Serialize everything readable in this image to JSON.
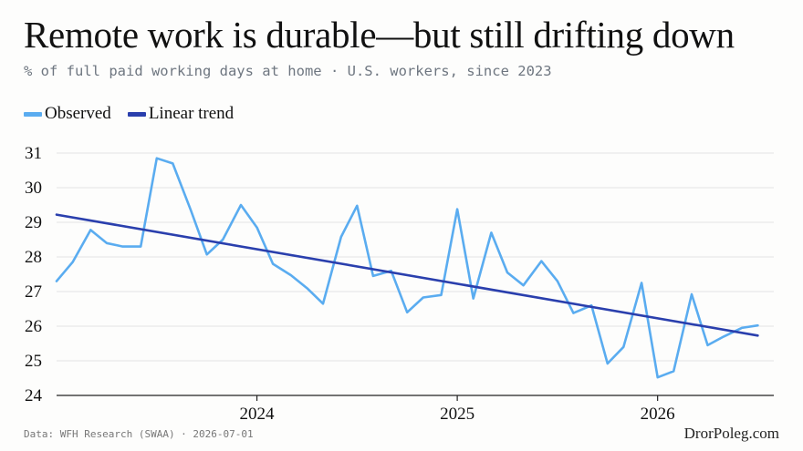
{
  "header": {
    "title": "Remote work is durable—but still drifting down",
    "subtitle": "% of full paid working days at home · U.S. workers, since 2023"
  },
  "legend": {
    "observed_label": "Observed",
    "trend_label": "Linear trend"
  },
  "colors": {
    "observed": "#5aacf0",
    "trend": "#2a3fad",
    "grid": "#e4e4e4",
    "axis": "#222222"
  },
  "chart_data": {
    "type": "line",
    "title": "Remote work is durable—but still drifting down",
    "subtitle": "% of full paid working days at home · U.S. workers, since 2023",
    "xlabel": "",
    "ylabel": "",
    "ylim": [
      24,
      31
    ],
    "y_ticks": [
      24,
      25,
      26,
      27,
      28,
      29,
      30,
      31
    ],
    "x_ticks": [
      "2024",
      "2025",
      "2026"
    ],
    "x_tick_positions": [
      2024.0,
      2025.0,
      2026.0
    ],
    "xlim": [
      2023.0,
      2026.58
    ],
    "grid": true,
    "legend_position": "top-left",
    "series": [
      {
        "name": "Observed",
        "style": "line",
        "x": [
          2023.0,
          2023.08,
          2023.17,
          2023.25,
          2023.33,
          2023.42,
          2023.5,
          2023.58,
          2023.67,
          2023.75,
          2023.83,
          2023.92,
          2024.0,
          2024.08,
          2024.17,
          2024.25,
          2024.33,
          2024.42,
          2024.5,
          2024.58,
          2024.67,
          2024.75,
          2024.83,
          2024.92,
          2025.0,
          2025.08,
          2025.17,
          2025.25,
          2025.33,
          2025.42,
          2025.5,
          2025.58,
          2025.67,
          2025.75,
          2025.83,
          2025.92,
          2026.0,
          2026.08,
          2026.17,
          2026.25,
          2026.33,
          2026.42,
          2026.5
        ],
        "values": [
          27.3,
          27.85,
          28.78,
          28.4,
          28.3,
          28.3,
          30.85,
          30.7,
          29.35,
          28.07,
          28.5,
          29.5,
          28.85,
          27.8,
          27.47,
          27.1,
          26.65,
          28.58,
          29.48,
          27.45,
          27.6,
          26.4,
          26.83,
          26.9,
          29.38,
          26.8,
          28.7,
          27.55,
          27.18,
          27.88,
          27.3,
          26.38,
          26.6,
          24.92,
          25.4,
          27.25,
          24.52,
          24.7,
          26.92,
          25.45,
          25.7,
          25.95,
          26.02
        ]
      },
      {
        "name": "Linear trend",
        "style": "line",
        "x": [
          2023.0,
          2026.5
        ],
        "values": [
          29.22,
          25.73
        ]
      }
    ]
  },
  "footer": {
    "source": "Data: WFH Research (SWAA) · 2026-07-01",
    "brand": "DrorPoleg.com"
  }
}
